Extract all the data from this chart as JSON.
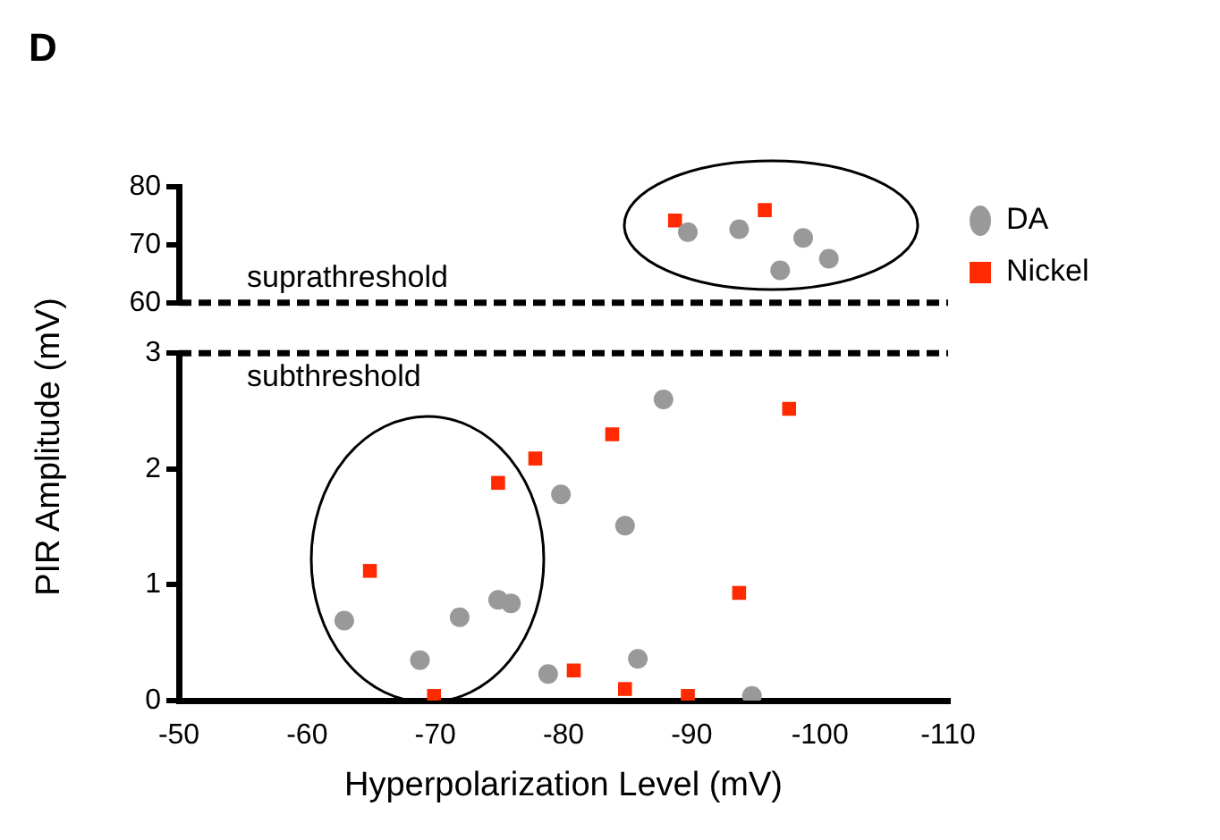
{
  "chart_data": [
    {
      "type": "scatter",
      "title": "D",
      "ylabel": "PIR Amplitude (mV)",
      "xlim": [
        -50,
        -110
      ],
      "ylim": [
        60,
        80
      ],
      "yticks": [
        60,
        70,
        80
      ],
      "tick_labels": "y",
      "legend": "right",
      "grid": false,
      "ref_lines": [
        {
          "axis": "y",
          "value": 60,
          "label": "suprathreshold",
          "line_style": "dashed",
          "color": "#000000"
        }
      ],
      "series": [
        {
          "name": "DA",
          "color": "#999999",
          "marker": "circle",
          "x": [
            -89.7,
            -93.7,
            -98.7,
            -96.9,
            -100.7
          ],
          "values": [
            72.2,
            72.7,
            71.2,
            65.6,
            67.6
          ]
        },
        {
          "name": "Nickel",
          "color": "#ff2a00",
          "marker": "square",
          "x": [
            -88.7,
            -95.7
          ],
          "values": [
            74.2,
            76
          ]
        }
      ]
    },
    {
      "type": "scatter",
      "xlabel": "Hyperpolarization Level (mV)",
      "xlim": [
        -50,
        -110
      ],
      "xticks": [
        -50,
        -60,
        -70,
        -80,
        -90,
        -100,
        -110
      ],
      "ylim": [
        0,
        3
      ],
      "yticks": [
        0,
        1,
        2,
        3
      ],
      "legend": false,
      "grid": false,
      "ref_lines": [
        {
          "axis": "y",
          "value": 3,
          "label": "subthreshold",
          "line_style": "dashed",
          "color": "#000000"
        }
      ],
      "series": [
        {
          "color": "#999999",
          "marker": "circle",
          "x": [
            -62.9,
            -68.8,
            -71.9,
            -74.9,
            -75.9,
            -78.8,
            -79.8,
            -84.8,
            -85.8,
            -87.8,
            -94.7
          ],
          "values": [
            0.69,
            0.35,
            0.72,
            0.87,
            0.84,
            0.23,
            1.78,
            1.51,
            0.36,
            2.6,
            0.04
          ]
        },
        {
          "color": "#ff2a00",
          "marker": "square",
          "x": [
            -64.9,
            -69.9,
            -74.9,
            -77.8,
            -80.8,
            -83.8,
            -84.8,
            -89.7,
            -93.7,
            -97.6
          ],
          "values": [
            1.12,
            0.04,
            1.88,
            2.09,
            0.26,
            2.3,
            0.1,
            0.04,
            0.93,
            2.52
          ]
        }
      ]
    }
  ]
}
